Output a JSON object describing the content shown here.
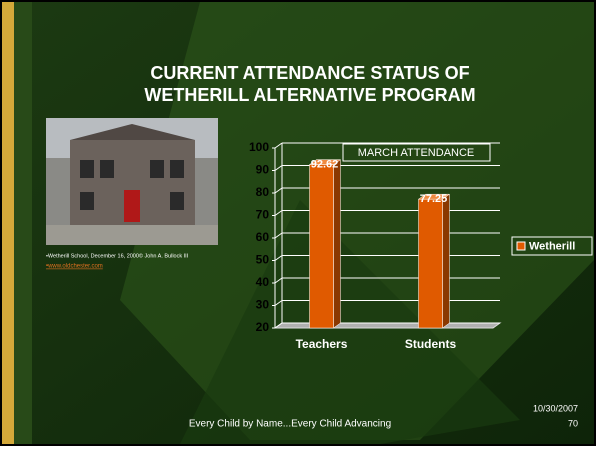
{
  "slide": {
    "title_lines": [
      "CURRENT ATTENDANCE STATUS OF",
      "WETHERILL ALTERNATIVE PROGRAM"
    ],
    "photo_caption": "•Wetherill School, December 16, 2000© John A. Bullock III",
    "photo_link": "•www.oldchester.com",
    "footer": "Every Child by Name...Every Child Advancing",
    "date": "10/30/2007",
    "page_number": "70"
  },
  "chart_data": {
    "type": "bar",
    "title": "MARCH ATTENDANCE",
    "categories": [
      "Teachers",
      "Students"
    ],
    "series": [
      {
        "name": "Wetherill",
        "color": "#e05a00",
        "values": [
          92.62,
          77.25
        ]
      }
    ],
    "ylim": [
      20,
      100
    ],
    "yticks": [
      20,
      30,
      40,
      50,
      60,
      70,
      80,
      90,
      100
    ],
    "grid": true,
    "legend": "right"
  }
}
